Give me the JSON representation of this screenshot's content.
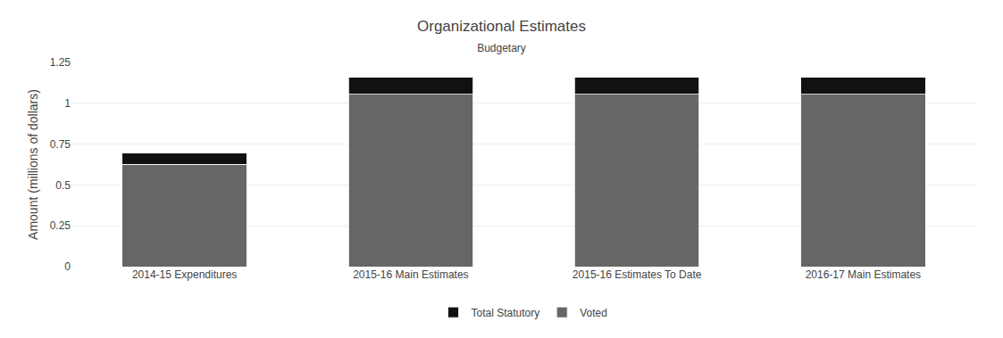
{
  "chart_data": {
    "type": "bar",
    "title": "Organizational Estimates",
    "subtitle": "Budgetary",
    "ylabel": "Amount (millions of dollars)",
    "categories": [
      "2014-15 Expenditures",
      "2015-16 Main Estimates",
      "2015-16 Estimates To Date",
      "2016-17 Main Estimates"
    ],
    "series": [
      {
        "name": "Voted",
        "color": "#666666",
        "values": [
          0.627,
          1.055,
          1.055,
          1.055
        ]
      },
      {
        "name": "Total Statutory",
        "color": "#111111",
        "values": [
          0.068,
          0.103,
          0.103,
          0.103
        ]
      }
    ],
    "stacked": true,
    "ylim": [
      0,
      1.25
    ],
    "yticks": [
      0,
      0.25,
      0.5,
      0.75,
      1,
      1.25
    ],
    "grid": true,
    "legend": "bottom"
  }
}
